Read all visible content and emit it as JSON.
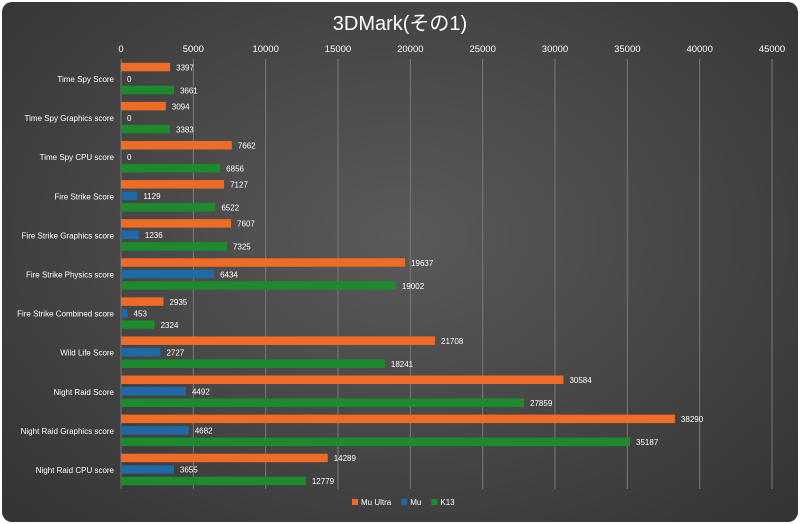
{
  "chart_data": {
    "type": "bar",
    "orientation": "horizontal",
    "title": "3DMark(その1)",
    "xlim": [
      0,
      45000
    ],
    "x_ticks": [
      0,
      5000,
      10000,
      15000,
      20000,
      25000,
      30000,
      35000,
      40000,
      45000
    ],
    "x_axis_position": "top",
    "grid": true,
    "legend_position": "bottom",
    "categories": [
      "Time Spy Score",
      "Time Spy Graphics score",
      "Time Spy CPU score",
      "Fire Strike Score",
      "Fire Strike Graphics score",
      "Fire Strike Physics score",
      "Fire Strike Combined score",
      "Wild Life Score",
      "Night Raid Score",
      "Night Raid Graphics score",
      "Night Raid CPU score"
    ],
    "series": [
      {
        "name": "Mu Ultra",
        "color": "#ee6c25",
        "values": [
          3397,
          3094,
          7662,
          7127,
          7607,
          19637,
          2935,
          21708,
          30584,
          38290,
          14289
        ]
      },
      {
        "name": "Mu",
        "color": "#1f69a6",
        "values": [
          0,
          0,
          0,
          1129,
          1236,
          6434,
          453,
          2727,
          4492,
          4682,
          3655
        ]
      },
      {
        "name": "K13",
        "color": "#1e8a2e",
        "values": [
          3661,
          3383,
          6856,
          6522,
          7325,
          19002,
          2324,
          18241,
          27859,
          35187,
          12779
        ]
      }
    ]
  }
}
